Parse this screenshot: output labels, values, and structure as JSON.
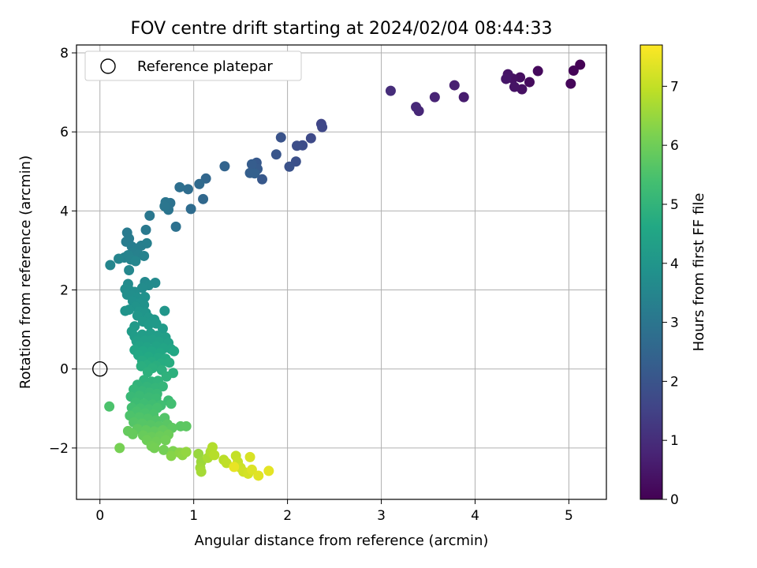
{
  "chart_data": {
    "type": "scatter",
    "title": "FOV centre drift starting at 2024/02/04 08:44:33",
    "xlabel": "Angular distance from reference (arcmin)",
    "ylabel": "Rotation from reference (arcmin)",
    "xlim": [
      -0.25,
      5.4
    ],
    "ylim": [
      -3.3,
      8.2
    ],
    "xticks": [
      "0",
      "1",
      "2",
      "3",
      "4",
      "5"
    ],
    "yticks": [
      "−2",
      "0",
      "2",
      "4",
      "6",
      "8"
    ],
    "xtick_values": [
      0,
      1,
      2,
      3,
      4,
      5
    ],
    "ytick_values": [
      -2,
      0,
      2,
      4,
      6,
      8
    ],
    "grid": true,
    "legend": {
      "position": "top-left",
      "label": "Reference platepar"
    },
    "reference_point": {
      "x": 0,
      "y": 0
    },
    "colorbar": {
      "label": "Hours from first FF file",
      "colormap": "viridis",
      "range": [
        0,
        7.7
      ],
      "ticks": [
        "0",
        "1",
        "2",
        "3",
        "4",
        "5",
        "6",
        "7"
      ],
      "tick_values": [
        0,
        1,
        2,
        3,
        4,
        5,
        6,
        7
      ]
    },
    "points": [
      [
        5.12,
        7.7,
        0.02
      ],
      [
        5.05,
        7.55,
        0.08
      ],
      [
        5.02,
        7.22,
        0.12
      ],
      [
        4.67,
        7.54,
        0.18
      ],
      [
        4.58,
        7.26,
        0.22
      ],
      [
        4.48,
        7.38,
        0.28
      ],
      [
        4.5,
        7.08,
        0.32
      ],
      [
        4.4,
        7.35,
        0.36
      ],
      [
        4.42,
        7.14,
        0.4
      ],
      [
        4.35,
        7.46,
        0.42
      ],
      [
        4.33,
        7.34,
        0.46
      ],
      [
        3.88,
        6.88,
        0.6
      ],
      [
        3.78,
        7.18,
        0.68
      ],
      [
        3.57,
        6.88,
        0.76
      ],
      [
        3.4,
        6.53,
        0.84
      ],
      [
        3.37,
        6.63,
        0.9
      ],
      [
        3.1,
        7.04,
        0.98
      ],
      [
        2.36,
        6.2,
        1.6
      ],
      [
        2.37,
        6.12,
        1.65
      ],
      [
        2.25,
        5.84,
        1.72
      ],
      [
        2.16,
        5.66,
        1.78
      ],
      [
        2.1,
        5.65,
        1.82
      ],
      [
        2.09,
        5.25,
        1.88
      ],
      [
        2.02,
        5.12,
        1.94
      ],
      [
        1.93,
        5.86,
        1.98
      ],
      [
        1.88,
        5.43,
        2.04
      ],
      [
        1.73,
        4.8,
        2.1
      ],
      [
        1.67,
        5.22,
        2.15
      ],
      [
        1.68,
        5.06,
        2.2
      ],
      [
        1.62,
        5.18,
        2.25
      ],
      [
        1.6,
        4.96,
        2.3
      ],
      [
        1.65,
        4.95,
        2.35
      ],
      [
        1.33,
        5.13,
        2.45
      ],
      [
        1.13,
        4.82,
        2.55
      ],
      [
        1.1,
        4.3,
        2.6
      ],
      [
        1.06,
        4.68,
        2.65
      ],
      [
        0.97,
        4.05,
        2.7
      ],
      [
        0.94,
        4.55,
        2.75
      ],
      [
        0.85,
        4.6,
        2.8
      ],
      [
        0.81,
        3.6,
        2.85
      ],
      [
        0.75,
        4.2,
        2.9
      ],
      [
        0.73,
        4.03,
        2.95
      ],
      [
        0.7,
        4.22,
        3.0
      ],
      [
        0.69,
        4.12,
        3.02
      ],
      [
        0.53,
        3.88,
        3.05
      ],
      [
        0.49,
        3.52,
        3.1
      ],
      [
        0.29,
        3.45,
        3.15
      ],
      [
        0.31,
        3.3,
        3.18
      ],
      [
        0.28,
        3.22,
        3.2
      ],
      [
        0.34,
        3.1,
        3.22
      ],
      [
        0.4,
        3.05,
        3.25
      ],
      [
        0.44,
        3.12,
        3.28
      ],
      [
        0.5,
        3.18,
        3.3
      ],
      [
        0.36,
        2.95,
        3.32
      ],
      [
        0.41,
        2.9,
        3.35
      ],
      [
        0.47,
        2.86,
        3.38
      ],
      [
        0.26,
        2.82,
        3.4
      ],
      [
        0.3,
        2.88,
        3.42
      ],
      [
        0.33,
        2.77,
        3.45
      ],
      [
        0.2,
        2.79,
        3.48
      ],
      [
        0.38,
        2.73,
        3.5
      ],
      [
        0.11,
        2.63,
        3.52
      ],
      [
        0.31,
        2.5,
        3.55
      ],
      [
        0.48,
        2.2,
        3.6
      ],
      [
        0.59,
        2.18,
        3.63
      ],
      [
        0.3,
        2.15,
        3.66
      ],
      [
        0.52,
        2.12,
        3.68
      ],
      [
        0.45,
        2.05,
        3.7
      ],
      [
        0.27,
        2.02,
        3.72
      ],
      [
        0.32,
        1.98,
        3.74
      ],
      [
        0.37,
        1.95,
        3.76
      ],
      [
        0.29,
        1.88,
        3.78
      ],
      [
        0.34,
        1.85,
        3.8
      ],
      [
        0.4,
        1.8,
        3.82
      ],
      [
        0.48,
        1.82,
        3.84
      ],
      [
        0.35,
        1.72,
        3.86
      ],
      [
        0.42,
        1.66,
        3.88
      ],
      [
        0.47,
        1.62,
        3.9
      ],
      [
        0.38,
        1.58,
        3.92
      ],
      [
        0.31,
        1.5,
        3.94
      ],
      [
        0.27,
        1.47,
        3.96
      ],
      [
        0.42,
        1.46,
        3.98
      ],
      [
        0.49,
        1.42,
        4.0
      ],
      [
        0.69,
        1.47,
        4.02
      ],
      [
        0.4,
        1.35,
        4.04
      ],
      [
        0.52,
        1.3,
        4.06
      ],
      [
        0.58,
        1.25,
        4.08
      ],
      [
        0.46,
        1.2,
        4.1
      ],
      [
        0.37,
        1.08,
        4.12
      ],
      [
        0.52,
        1.12,
        4.14
      ],
      [
        0.6,
        1.15,
        4.16
      ],
      [
        0.67,
        1.02,
        4.18
      ],
      [
        0.34,
        0.95,
        4.2
      ],
      [
        0.37,
        0.82,
        4.22
      ],
      [
        0.45,
        0.87,
        4.24
      ],
      [
        0.54,
        0.9,
        4.26
      ],
      [
        0.61,
        0.84,
        4.28
      ],
      [
        0.7,
        0.8,
        4.3
      ],
      [
        0.39,
        0.7,
        4.32
      ],
      [
        0.48,
        0.72,
        4.34
      ],
      [
        0.56,
        0.74,
        4.36
      ],
      [
        0.63,
        0.69,
        4.38
      ],
      [
        0.73,
        0.66,
        4.4
      ],
      [
        0.42,
        0.58,
        4.42
      ],
      [
        0.5,
        0.55,
        4.44
      ],
      [
        0.6,
        0.57,
        4.46
      ],
      [
        0.68,
        0.52,
        4.48
      ],
      [
        0.76,
        0.5,
        4.5
      ],
      [
        0.37,
        0.48,
        4.52
      ],
      [
        0.46,
        0.45,
        4.54
      ],
      [
        0.55,
        0.44,
        4.56
      ],
      [
        0.64,
        0.4,
        4.58
      ],
      [
        0.79,
        0.45,
        4.6
      ],
      [
        0.41,
        0.35,
        4.62
      ],
      [
        0.52,
        0.31,
        4.64
      ],
      [
        0.62,
        0.28,
        4.66
      ],
      [
        0.7,
        0.26,
        4.68
      ],
      [
        0.45,
        0.21,
        4.7
      ],
      [
        0.55,
        0.18,
        4.72
      ],
      [
        0.65,
        0.14,
        4.74
      ],
      [
        0.74,
        0.16,
        4.76
      ],
      [
        0.5,
        0.1,
        4.78
      ],
      [
        0.6,
        0.08,
        4.8
      ],
      [
        0.44,
        0.07,
        4.82
      ],
      [
        0.56,
        0.02,
        4.84
      ],
      [
        0.66,
        -0.03,
        4.86
      ],
      [
        0.78,
        -0.1,
        4.88
      ],
      [
        0.51,
        -0.08,
        4.9
      ],
      [
        0.71,
        -0.19,
        4.92
      ],
      [
        0.47,
        -0.28,
        4.94
      ],
      [
        0.55,
        -0.32,
        4.96
      ],
      [
        0.62,
        -0.3,
        4.98
      ],
      [
        0.4,
        -0.4,
        5.0
      ],
      [
        0.5,
        -0.45,
        5.02
      ],
      [
        0.59,
        -0.48,
        5.04
      ],
      [
        0.67,
        -0.44,
        5.06
      ],
      [
        0.36,
        -0.52,
        5.08
      ],
      [
        0.45,
        -0.56,
        5.1
      ],
      [
        0.53,
        -0.6,
        5.12
      ],
      [
        0.61,
        -0.63,
        5.14
      ],
      [
        0.33,
        -0.7,
        5.16
      ],
      [
        0.42,
        -0.68,
        5.18
      ],
      [
        0.52,
        -0.72,
        5.2
      ],
      [
        0.6,
        -0.75,
        5.22
      ],
      [
        0.73,
        -0.8,
        5.24
      ],
      [
        0.38,
        -0.85,
        5.26
      ],
      [
        0.47,
        -0.88,
        5.28
      ],
      [
        0.56,
        -0.9,
        5.3
      ],
      [
        0.65,
        -0.92,
        5.32
      ],
      [
        0.76,
        -0.88,
        5.34
      ],
      [
        0.34,
        -0.98,
        5.36
      ],
      [
        0.43,
        -1.0,
        5.38
      ],
      [
        0.52,
        -1.02,
        5.4
      ],
      [
        0.61,
        -0.99,
        5.42
      ],
      [
        0.39,
        -1.08,
        5.44
      ],
      [
        0.48,
        -1.12,
        5.46
      ],
      [
        0.57,
        -1.15,
        5.48
      ],
      [
        0.1,
        -0.95,
        5.5
      ],
      [
        0.32,
        -1.18,
        5.52
      ],
      [
        0.42,
        -1.22,
        5.54
      ],
      [
        0.51,
        -1.26,
        5.56
      ],
      [
        0.6,
        -1.3,
        5.58
      ],
      [
        0.69,
        -1.24,
        5.6
      ],
      [
        0.36,
        -1.35,
        5.62
      ],
      [
        0.45,
        -1.38,
        5.64
      ],
      [
        0.54,
        -1.42,
        5.66
      ],
      [
        0.63,
        -1.45,
        5.68
      ],
      [
        0.72,
        -1.4,
        5.7
      ],
      [
        0.86,
        -1.45,
        5.72
      ],
      [
        0.92,
        -1.45,
        5.74
      ],
      [
        0.77,
        -1.49,
        5.76
      ],
      [
        0.4,
        -1.52,
        5.78
      ],
      [
        0.49,
        -1.55,
        5.8
      ],
      [
        0.58,
        -1.58,
        5.82
      ],
      [
        0.67,
        -1.55,
        5.84
      ],
      [
        0.3,
        -1.57,
        5.86
      ],
      [
        0.35,
        -1.65,
        5.88
      ],
      [
        0.46,
        -1.68,
        5.9
      ],
      [
        0.55,
        -1.72,
        5.92
      ],
      [
        0.64,
        -1.7,
        5.94
      ],
      [
        0.73,
        -1.66,
        5.96
      ],
      [
        0.5,
        -1.8,
        5.98
      ],
      [
        0.6,
        -1.84,
        6.0
      ],
      [
        0.7,
        -1.8,
        6.02
      ],
      [
        0.55,
        -1.95,
        6.04
      ],
      [
        0.68,
        -2.05,
        6.06
      ],
      [
        0.58,
        -2.0,
        6.08
      ],
      [
        0.21,
        -2.0,
        6.1
      ],
      [
        0.78,
        -2.08,
        6.2
      ],
      [
        0.76,
        -2.2,
        6.3
      ],
      [
        0.85,
        -2.12,
        6.35
      ],
      [
        0.88,
        -2.18,
        6.4
      ],
      [
        0.92,
        -2.1,
        6.45
      ],
      [
        1.05,
        -2.15,
        6.5
      ],
      [
        1.08,
        -2.35,
        6.55
      ],
      [
        1.07,
        -2.5,
        6.6
      ],
      [
        1.08,
        -2.6,
        6.65
      ],
      [
        1.15,
        -2.25,
        6.7
      ],
      [
        1.18,
        -2.1,
        6.75
      ],
      [
        1.2,
        -1.98,
        6.8
      ],
      [
        1.22,
        -2.18,
        6.85
      ],
      [
        1.32,
        -2.3,
        6.9
      ],
      [
        1.35,
        -2.38,
        6.95
      ],
      [
        1.45,
        -2.2,
        7.0
      ],
      [
        1.47,
        -2.35,
        7.05
      ],
      [
        1.5,
        -2.5,
        7.1
      ],
      [
        1.53,
        -2.6,
        7.15
      ],
      [
        1.58,
        -2.65,
        7.2
      ],
      [
        1.6,
        -2.23,
        7.25
      ],
      [
        1.62,
        -2.55,
        7.3
      ],
      [
        1.69,
        -2.7,
        7.35
      ],
      [
        1.8,
        -2.58,
        7.4
      ],
      [
        1.43,
        -2.48,
        7.45
      ]
    ]
  }
}
